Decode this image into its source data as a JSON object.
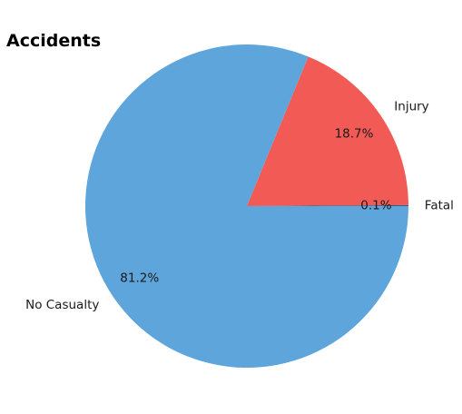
{
  "chart_data": {
    "type": "pie",
    "title": "Accidents",
    "slices": [
      {
        "label": "Fatal",
        "value": 0.1,
        "pct_label": "0.1%",
        "color": "#3d5a80"
      },
      {
        "label": "Injury",
        "value": 18.7,
        "pct_label": "18.7%",
        "color": "#f15a55"
      },
      {
        "label": "No Casualty",
        "value": 81.2,
        "pct_label": "81.2%",
        "color": "#5ea5db"
      }
    ],
    "start_angle_deg": 0,
    "direction": "counterclockwise"
  }
}
